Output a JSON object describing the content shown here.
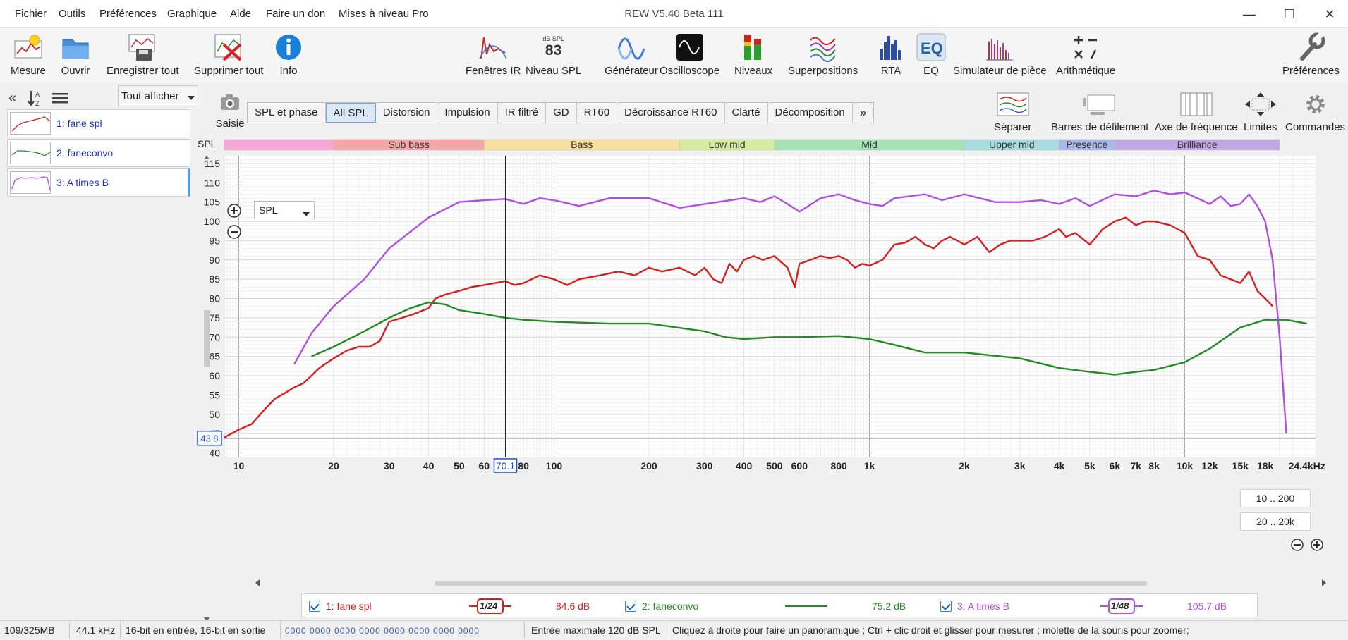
{
  "window": {
    "title": "REW V5.40 Beta 111",
    "minimize": "—",
    "maximize": "☐",
    "close": "✕"
  },
  "menu": [
    "Fichier",
    "Outils",
    "Préférences",
    "Graphique",
    "Aide",
    "Faire un don",
    "Mises à niveau Pro"
  ],
  "toolbar_left": [
    {
      "label": "Mesure",
      "icon": "measure-icon"
    },
    {
      "label": "Ouvrir",
      "icon": "folder-open-icon"
    },
    {
      "label": "Enregistrer tout",
      "icon": "save-all-icon"
    },
    {
      "label": "Supprimer tout",
      "icon": "delete-all-icon"
    },
    {
      "label": "Info",
      "icon": "info-icon"
    }
  ],
  "toolbar_center": [
    {
      "label": "Fenêtres IR",
      "icon": "ir-windows-icon"
    },
    {
      "label": "Niveau SPL",
      "icon": "spl-meter-icon",
      "readout_top": "dB SPL",
      "readout_value": "83"
    },
    {
      "label": "Générateur",
      "icon": "generator-icon"
    },
    {
      "label": "Oscilloscope",
      "icon": "oscilloscope-icon"
    },
    {
      "label": "Niveaux",
      "icon": "levels-icon"
    },
    {
      "label": "Superpositions",
      "icon": "overlays-icon"
    },
    {
      "label": "RTA",
      "icon": "rta-icon"
    },
    {
      "label": "EQ",
      "icon": "eq-icon"
    },
    {
      "label": "Simulateur de pièce",
      "icon": "room-sim-icon"
    },
    {
      "label": "Arithmétique",
      "icon": "arithmetic-icon"
    }
  ],
  "toolbar_right": {
    "label": "Préférences",
    "icon": "preferences-wrench-icon"
  },
  "sidebar": {
    "show_all_label": "Tout afficher",
    "measurements": [
      {
        "name": "1: fane spl",
        "color": "#d42020"
      },
      {
        "name": "2: faneconvo",
        "color": "#228b22"
      },
      {
        "name": "3: A times B",
        "color": "#b050e0"
      }
    ]
  },
  "capture_label": "Saisie",
  "tabs": [
    "SPL et phase",
    "All SPL",
    "Distorsion",
    "Impulsion",
    "IR filtré",
    "GD",
    "RT60",
    "Décroissance RT60",
    "Clarté",
    "Décomposition"
  ],
  "active_tab": "All SPL",
  "tabs_more": "»",
  "right_tools": [
    {
      "label": "Séparer",
      "icon": "separate-icon"
    },
    {
      "label": "Barres de défilement",
      "icon": "scrollbars-icon"
    },
    {
      "label": "Axe de fréquence",
      "icon": "freq-axis-icon"
    },
    {
      "label": "Limites",
      "icon": "limits-icon"
    },
    {
      "label": "Commandes",
      "icon": "gear-icon"
    }
  ],
  "chart_data": {
    "type": "line",
    "ylabel": "SPL",
    "xunit": "kHz",
    "xscale": "log",
    "xlim": [
      9,
      26000
    ],
    "ylim": [
      39,
      117
    ],
    "grid": true,
    "yticks": [
      40,
      45,
      50,
      55,
      60,
      65,
      70,
      75,
      80,
      85,
      90,
      95,
      100,
      105,
      110,
      115
    ],
    "xticks": [
      {
        "f": 10,
        "l": "10"
      },
      {
        "f": 20,
        "l": "20"
      },
      {
        "f": 30,
        "l": "30"
      },
      {
        "f": 40,
        "l": "40"
      },
      {
        "f": 50,
        "l": "50"
      },
      {
        "f": 60,
        "l": "60"
      },
      {
        "f": 80,
        "l": "80"
      },
      {
        "f": 100,
        "l": "100"
      },
      {
        "f": 200,
        "l": "200"
      },
      {
        "f": 300,
        "l": "300"
      },
      {
        "f": 400,
        "l": "400"
      },
      {
        "f": 500,
        "l": "500"
      },
      {
        "f": 600,
        "l": "600"
      },
      {
        "f": 800,
        "l": "800"
      },
      {
        "f": 1000,
        "l": "1k"
      },
      {
        "f": 2000,
        "l": "2k"
      },
      {
        "f": 3000,
        "l": "3k"
      },
      {
        "f": 4000,
        "l": "4k"
      },
      {
        "f": 5000,
        "l": "5k"
      },
      {
        "f": 6000,
        "l": "6k"
      },
      {
        "f": 7000,
        "l": "7k"
      },
      {
        "f": 8000,
        "l": "8k"
      },
      {
        "f": 10000,
        "l": "10k"
      },
      {
        "f": 12000,
        "l": "12k"
      },
      {
        "f": 15000,
        "l": "15k"
      },
      {
        "f": 18000,
        "l": "18k"
      },
      {
        "f": 24400,
        "l": "24.4kHz"
      }
    ],
    "cursor": {
      "freq": 70.1,
      "freq_label": "70.1",
      "level": 43.8,
      "level_label": "43.8"
    },
    "bands": [
      {
        "name": "",
        "from": 9,
        "to": 20,
        "color": "#f7a8d8"
      },
      {
        "name": "Sub bass",
        "from": 20,
        "to": 60,
        "color": "#f4a7a7"
      },
      {
        "name": "Bass",
        "from": 60,
        "to": 250,
        "color": "#f9dfa0"
      },
      {
        "name": "Low mid",
        "from": 250,
        "to": 500,
        "color": "#d6ec9e"
      },
      {
        "name": "Mid",
        "from": 500,
        "to": 2000,
        "color": "#a5e3b5"
      },
      {
        "name": "Upper mid",
        "from": 2000,
        "to": 4000,
        "color": "#a7dde0"
      },
      {
        "name": "Presence",
        "from": 4000,
        "to": 6000,
        "color": "#a8b8e8"
      },
      {
        "name": "Brilliance",
        "from": 6000,
        "to": 20000,
        "color": "#c3a8e6"
      }
    ],
    "series": [
      {
        "name": "1: fane spl",
        "color": "#d42020",
        "smoothing": "1/24",
        "value_label": "84.6 dB",
        "points": [
          [
            9,
            44
          ],
          [
            10,
            46
          ],
          [
            11,
            47.5
          ],
          [
            12,
            51
          ],
          [
            13,
            54
          ],
          [
            14,
            55.5
          ],
          [
            15,
            57
          ],
          [
            16,
            58
          ],
          [
            17,
            60
          ],
          [
            18,
            62
          ],
          [
            20,
            64.5
          ],
          [
            22,
            66.5
          ],
          [
            24,
            67.5
          ],
          [
            26,
            67.5
          ],
          [
            28,
            69
          ],
          [
            30,
            74
          ],
          [
            33,
            75
          ],
          [
            36,
            76
          ],
          [
            40,
            77.5
          ],
          [
            42,
            80
          ],
          [
            45,
            81
          ],
          [
            50,
            82
          ],
          [
            55,
            83
          ],
          [
            60,
            83.5
          ],
          [
            70,
            84.5
          ],
          [
            75,
            83.5
          ],
          [
            80,
            84
          ],
          [
            90,
            86
          ],
          [
            100,
            85
          ],
          [
            110,
            83.5
          ],
          [
            120,
            85
          ],
          [
            140,
            86
          ],
          [
            160,
            87
          ],
          [
            180,
            86
          ],
          [
            200,
            88
          ],
          [
            220,
            87
          ],
          [
            250,
            88
          ],
          [
            280,
            86
          ],
          [
            300,
            88
          ],
          [
            320,
            85
          ],
          [
            340,
            84
          ],
          [
            360,
            89
          ],
          [
            380,
            87
          ],
          [
            400,
            90
          ],
          [
            430,
            91
          ],
          [
            460,
            90
          ],
          [
            500,
            91
          ],
          [
            550,
            88
          ],
          [
            580,
            83
          ],
          [
            600,
            89
          ],
          [
            650,
            90
          ],
          [
            700,
            91
          ],
          [
            750,
            90.5
          ],
          [
            800,
            91
          ],
          [
            850,
            90
          ],
          [
            900,
            88
          ],
          [
            950,
            89
          ],
          [
            1000,
            88.5
          ],
          [
            1100,
            90
          ],
          [
            1200,
            94
          ],
          [
            1300,
            94.5
          ],
          [
            1400,
            96
          ],
          [
            1500,
            94
          ],
          [
            1600,
            93
          ],
          [
            1700,
            95
          ],
          [
            1800,
            96
          ],
          [
            1900,
            95
          ],
          [
            2000,
            94
          ],
          [
            2200,
            96
          ],
          [
            2400,
            92
          ],
          [
            2600,
            94
          ],
          [
            2800,
            95
          ],
          [
            3000,
            95
          ],
          [
            3300,
            95
          ],
          [
            3600,
            96
          ],
          [
            4000,
            98
          ],
          [
            4200,
            96
          ],
          [
            4500,
            97
          ],
          [
            5000,
            94
          ],
          [
            5500,
            98
          ],
          [
            6000,
            100
          ],
          [
            6500,
            101
          ],
          [
            7000,
            99
          ],
          [
            7500,
            100
          ],
          [
            8000,
            100
          ],
          [
            9000,
            99
          ],
          [
            10000,
            97
          ],
          [
            11000,
            91
          ],
          [
            12000,
            90
          ],
          [
            13000,
            86
          ],
          [
            14000,
            85
          ],
          [
            15000,
            84
          ],
          [
            16000,
            87
          ],
          [
            17000,
            82
          ],
          [
            18000,
            80
          ],
          [
            19000,
            78
          ]
        ]
      },
      {
        "name": "2: faneconvo",
        "color": "#228b22",
        "smoothing": "",
        "value_label": "75.2 dB",
        "points": [
          [
            17,
            65
          ],
          [
            20,
            67.5
          ],
          [
            25,
            71.5
          ],
          [
            30,
            75
          ],
          [
            35,
            77.5
          ],
          [
            40,
            79
          ],
          [
            45,
            78.5
          ],
          [
            50,
            77
          ],
          [
            60,
            76
          ],
          [
            70,
            75
          ],
          [
            80,
            74.5
          ],
          [
            100,
            74
          ],
          [
            150,
            73.5
          ],
          [
            200,
            73.5
          ],
          [
            300,
            71.5
          ],
          [
            350,
            70
          ],
          [
            400,
            69.5
          ],
          [
            500,
            70
          ],
          [
            600,
            70
          ],
          [
            800,
            70.3
          ],
          [
            1000,
            69.5
          ],
          [
            1200,
            68
          ],
          [
            1500,
            66
          ],
          [
            2000,
            66
          ],
          [
            3000,
            64.5
          ],
          [
            4000,
            62
          ],
          [
            5000,
            61
          ],
          [
            6000,
            60.3
          ],
          [
            7000,
            61
          ],
          [
            8000,
            61.5
          ],
          [
            10000,
            63.5
          ],
          [
            12000,
            67
          ],
          [
            15000,
            72.5
          ],
          [
            18000,
            74.5
          ],
          [
            21000,
            74.5
          ],
          [
            24400,
            73.5
          ]
        ]
      },
      {
        "name": "3: A times B",
        "color": "#b050e0",
        "smoothing": "1/48",
        "value_label": "105.7 dB",
        "points": [
          [
            15,
            63
          ],
          [
            17,
            71
          ],
          [
            20,
            78
          ],
          [
            25,
            85
          ],
          [
            30,
            93
          ],
          [
            40,
            101
          ],
          [
            50,
            105
          ],
          [
            60,
            105.5
          ],
          [
            70,
            105.8
          ],
          [
            80,
            104.5
          ],
          [
            90,
            106
          ],
          [
            100,
            105.5
          ],
          [
            120,
            104
          ],
          [
            150,
            106
          ],
          [
            200,
            106
          ],
          [
            250,
            103.5
          ],
          [
            300,
            104.5
          ],
          [
            400,
            106
          ],
          [
            450,
            105
          ],
          [
            500,
            106.5
          ],
          [
            550,
            104.5
          ],
          [
            600,
            102.5
          ],
          [
            700,
            106
          ],
          [
            800,
            107
          ],
          [
            900,
            105.5
          ],
          [
            1000,
            104.5
          ],
          [
            1100,
            104
          ],
          [
            1200,
            106
          ],
          [
            1500,
            107
          ],
          [
            1700,
            105.5
          ],
          [
            2000,
            107
          ],
          [
            2500,
            105
          ],
          [
            3000,
            105
          ],
          [
            3500,
            105.5
          ],
          [
            4000,
            104.5
          ],
          [
            4500,
            106
          ],
          [
            5000,
            104
          ],
          [
            6000,
            107
          ],
          [
            7000,
            106.5
          ],
          [
            8000,
            108
          ],
          [
            9000,
            107
          ],
          [
            10000,
            107.5
          ],
          [
            12000,
            104.5
          ],
          [
            13000,
            106.5
          ],
          [
            14000,
            104
          ],
          [
            15000,
            104.5
          ],
          [
            16000,
            107
          ],
          [
            17000,
            104
          ],
          [
            18000,
            100
          ],
          [
            19000,
            90
          ],
          [
            20000,
            70
          ],
          [
            21000,
            45
          ]
        ]
      }
    ]
  },
  "chart_controls": {
    "y_selector": "SPL",
    "range1": "10 .. 200",
    "range2": "20 .. 20k"
  },
  "status": {
    "memory": "109/325MB",
    "rate": "44.1 kHz",
    "bits": "16-bit en entrée, 16-bit en sortie",
    "counters": "0000 0000  0000 0000  0000 0000  0000 0000",
    "max_input": "Entrée maximale 120 dB SPL",
    "hint": "Cliquez à droite pour faire un panoramique ; Ctrl + clic droit et glisser pour mesurer ; molette de la souris pour zoomer;"
  }
}
